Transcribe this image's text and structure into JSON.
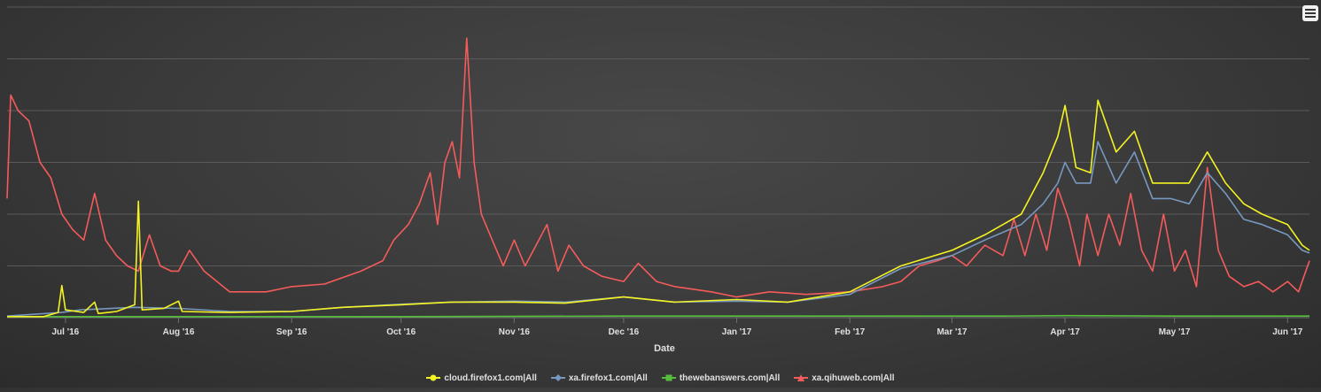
{
  "chart_data": {
    "type": "line",
    "title": "",
    "xlabel": "Date",
    "ylabel": "",
    "x_range": [
      "2016-06-15",
      "2017-06-07"
    ],
    "y_range": [
      0,
      60
    ],
    "grid": {
      "horizontal": true,
      "vertical": false
    },
    "legend": "bottom-center",
    "x_ticks": [
      {
        "label": "Jul '16",
        "date": "2016-07-01"
      },
      {
        "label": "Aug '16",
        "date": "2016-08-01"
      },
      {
        "label": "Sep '16",
        "date": "2016-09-01"
      },
      {
        "label": "Oct '16",
        "date": "2016-10-01"
      },
      {
        "label": "Nov '16",
        "date": "2016-11-01"
      },
      {
        "label": "Dec '16",
        "date": "2016-12-01"
      },
      {
        "label": "Jan '17",
        "date": "2017-01-01"
      },
      {
        "label": "Feb '17",
        "date": "2017-02-01"
      },
      {
        "label": "Mar '17",
        "date": "2017-03-01"
      },
      {
        "label": "Apr '17",
        "date": "2017-04-01"
      },
      {
        "label": "May '17",
        "date": "2017-05-01"
      },
      {
        "label": "Jun '17",
        "date": "2017-06-01"
      }
    ],
    "y_gridlines": [
      0,
      10,
      20,
      30,
      40,
      50,
      60
    ],
    "series": [
      {
        "name": "cloud.firefox1.com|All",
        "color": "#f3f323",
        "marker": "circle",
        "points": [
          [
            "2016-06-15",
            0.2
          ],
          [
            "2016-06-25",
            0.2
          ],
          [
            "2016-06-29",
            1.0
          ],
          [
            "2016-06-30",
            6.2
          ],
          [
            "2016-07-01",
            1.5
          ],
          [
            "2016-07-06",
            1.0
          ],
          [
            "2016-07-09",
            3.0
          ],
          [
            "2016-07-10",
            0.8
          ],
          [
            "2016-07-15",
            1.2
          ],
          [
            "2016-07-20",
            2.5
          ],
          [
            "2016-07-21",
            22.5
          ],
          [
            "2016-07-22",
            1.5
          ],
          [
            "2016-07-28",
            1.8
          ],
          [
            "2016-08-01",
            3.2
          ],
          [
            "2016-08-02",
            1.2
          ],
          [
            "2016-08-15",
            1.0
          ],
          [
            "2016-09-01",
            1.2
          ],
          [
            "2016-09-15",
            2.0
          ],
          [
            "2016-10-01",
            2.5
          ],
          [
            "2016-10-15",
            3.0
          ],
          [
            "2016-11-01",
            3.0
          ],
          [
            "2016-11-15",
            2.8
          ],
          [
            "2016-12-01",
            4.0
          ],
          [
            "2016-12-15",
            3.0
          ],
          [
            "2017-01-01",
            3.5
          ],
          [
            "2017-01-15",
            3.0
          ],
          [
            "2017-02-01",
            5.0
          ],
          [
            "2017-02-15",
            10.0
          ],
          [
            "2017-03-01",
            13.0
          ],
          [
            "2017-03-10",
            16.0
          ],
          [
            "2017-03-20",
            20.0
          ],
          [
            "2017-03-26",
            28.0
          ],
          [
            "2017-03-30",
            35.0
          ],
          [
            "2017-04-01",
            41.0
          ],
          [
            "2017-04-04",
            29.0
          ],
          [
            "2017-04-08",
            28.0
          ],
          [
            "2017-04-10",
            42.0
          ],
          [
            "2017-04-15",
            32.0
          ],
          [
            "2017-04-20",
            36.0
          ],
          [
            "2017-04-25",
            26.0
          ],
          [
            "2017-04-30",
            26.0
          ],
          [
            "2017-05-05",
            26.0
          ],
          [
            "2017-05-10",
            32.0
          ],
          [
            "2017-05-15",
            26.0
          ],
          [
            "2017-05-20",
            22.0
          ],
          [
            "2017-05-25",
            20.0
          ],
          [
            "2017-06-01",
            18.0
          ],
          [
            "2017-06-05",
            14.0
          ],
          [
            "2017-06-07",
            13.0
          ]
        ]
      },
      {
        "name": "xa.firefox1.com|All",
        "color": "#7798bf",
        "marker": "diamond",
        "points": [
          [
            "2016-06-15",
            0.3
          ],
          [
            "2016-06-30",
            1.0
          ],
          [
            "2016-07-05",
            1.5
          ],
          [
            "2016-07-20",
            2.0
          ],
          [
            "2016-08-01",
            1.8
          ],
          [
            "2016-08-15",
            1.2
          ],
          [
            "2016-09-01",
            1.2
          ],
          [
            "2016-09-15",
            2.0
          ],
          [
            "2016-10-01",
            2.6
          ],
          [
            "2016-10-15",
            3.0
          ],
          [
            "2016-11-01",
            3.2
          ],
          [
            "2016-11-15",
            3.0
          ],
          [
            "2016-12-01",
            4.0
          ],
          [
            "2016-12-15",
            3.0
          ],
          [
            "2017-01-01",
            3.2
          ],
          [
            "2017-01-15",
            3.0
          ],
          [
            "2017-02-01",
            4.5
          ],
          [
            "2017-02-15",
            9.5
          ],
          [
            "2017-03-01",
            12.0
          ],
          [
            "2017-03-10",
            15.0
          ],
          [
            "2017-03-20",
            18.0
          ],
          [
            "2017-03-26",
            22.0
          ],
          [
            "2017-03-30",
            26.0
          ],
          [
            "2017-04-01",
            30.0
          ],
          [
            "2017-04-04",
            26.0
          ],
          [
            "2017-04-08",
            26.0
          ],
          [
            "2017-04-10",
            34.0
          ],
          [
            "2017-04-15",
            26.0
          ],
          [
            "2017-04-20",
            32.0
          ],
          [
            "2017-04-25",
            23.0
          ],
          [
            "2017-04-30",
            23.0
          ],
          [
            "2017-05-05",
            22.0
          ],
          [
            "2017-05-10",
            28.0
          ],
          [
            "2017-05-15",
            24.0
          ],
          [
            "2017-05-20",
            19.0
          ],
          [
            "2017-05-25",
            18.0
          ],
          [
            "2017-06-01",
            16.0
          ],
          [
            "2017-06-05",
            13.0
          ],
          [
            "2017-06-07",
            12.5
          ]
        ]
      },
      {
        "name": "thewebanswers.com|All",
        "color": "#55bf3b",
        "marker": "square",
        "points": [
          [
            "2016-06-15",
            0.2
          ],
          [
            "2016-08-01",
            0.2
          ],
          [
            "2016-10-01",
            0.2
          ],
          [
            "2016-12-01",
            0.3
          ],
          [
            "2017-02-01",
            0.3
          ],
          [
            "2017-03-15",
            0.3
          ],
          [
            "2017-04-01",
            0.4
          ],
          [
            "2017-05-01",
            0.3
          ],
          [
            "2017-06-01",
            0.3
          ],
          [
            "2017-06-07",
            0.3
          ]
        ]
      },
      {
        "name": "xa.qihuweb.com|All",
        "color": "#f45b5b",
        "marker": "triangle",
        "points": [
          [
            "2016-06-15",
            23.0
          ],
          [
            "2016-06-16",
            43.0
          ],
          [
            "2016-06-18",
            40.0
          ],
          [
            "2016-06-21",
            38.0
          ],
          [
            "2016-06-24",
            30.0
          ],
          [
            "2016-06-27",
            27.0
          ],
          [
            "2016-06-30",
            20.0
          ],
          [
            "2016-07-03",
            17.0
          ],
          [
            "2016-07-06",
            15.0
          ],
          [
            "2016-07-09",
            24.0
          ],
          [
            "2016-07-12",
            15.0
          ],
          [
            "2016-07-15",
            12.0
          ],
          [
            "2016-07-18",
            10.0
          ],
          [
            "2016-07-21",
            9.0
          ],
          [
            "2016-07-24",
            16.0
          ],
          [
            "2016-07-27",
            10.0
          ],
          [
            "2016-07-30",
            9.0
          ],
          [
            "2016-08-01",
            9.0
          ],
          [
            "2016-08-04",
            13.0
          ],
          [
            "2016-08-08",
            9.0
          ],
          [
            "2016-08-15",
            5.0
          ],
          [
            "2016-08-25",
            5.0
          ],
          [
            "2016-09-01",
            6.0
          ],
          [
            "2016-09-10",
            6.5
          ],
          [
            "2016-09-20",
            9.0
          ],
          [
            "2016-09-26",
            11.0
          ],
          [
            "2016-09-29",
            15.0
          ],
          [
            "2016-10-03",
            18.0
          ],
          [
            "2016-10-06",
            22.0
          ],
          [
            "2016-10-09",
            28.0
          ],
          [
            "2016-10-11",
            18.0
          ],
          [
            "2016-10-13",
            30.0
          ],
          [
            "2016-10-15",
            34.0
          ],
          [
            "2016-10-17",
            27.0
          ],
          [
            "2016-10-19",
            54.0
          ],
          [
            "2016-10-21",
            30.0
          ],
          [
            "2016-10-23",
            20.0
          ],
          [
            "2016-10-26",
            15.0
          ],
          [
            "2016-10-29",
            10.0
          ],
          [
            "2016-11-01",
            15.0
          ],
          [
            "2016-11-04",
            10.0
          ],
          [
            "2016-11-07",
            14.0
          ],
          [
            "2016-11-10",
            18.0
          ],
          [
            "2016-11-13",
            9.0
          ],
          [
            "2016-11-16",
            14.0
          ],
          [
            "2016-11-20",
            10.0
          ],
          [
            "2016-11-25",
            8.0
          ],
          [
            "2016-12-01",
            7.0
          ],
          [
            "2016-12-05",
            10.5
          ],
          [
            "2016-12-10",
            7.0
          ],
          [
            "2016-12-15",
            6.0
          ],
          [
            "2016-12-20",
            5.5
          ],
          [
            "2016-12-25",
            5.0
          ],
          [
            "2017-01-01",
            4.0
          ],
          [
            "2017-01-10",
            5.0
          ],
          [
            "2017-01-20",
            4.5
          ],
          [
            "2017-02-01",
            5.0
          ],
          [
            "2017-02-10",
            6.0
          ],
          [
            "2017-02-15",
            7.0
          ],
          [
            "2017-02-20",
            10.0
          ],
          [
            "2017-02-25",
            11.0
          ],
          [
            "2017-03-01",
            12.0
          ],
          [
            "2017-03-05",
            10.0
          ],
          [
            "2017-03-10",
            14.0
          ],
          [
            "2017-03-15",
            12.0
          ],
          [
            "2017-03-18",
            19.0
          ],
          [
            "2017-03-21",
            12.0
          ],
          [
            "2017-03-24",
            20.0
          ],
          [
            "2017-03-27",
            13.0
          ],
          [
            "2017-03-30",
            25.0
          ],
          [
            "2017-04-02",
            19.0
          ],
          [
            "2017-04-05",
            10.0
          ],
          [
            "2017-04-07",
            20.0
          ],
          [
            "2017-04-10",
            12.0
          ],
          [
            "2017-04-13",
            20.0
          ],
          [
            "2017-04-16",
            14.0
          ],
          [
            "2017-04-19",
            24.0
          ],
          [
            "2017-04-22",
            13.0
          ],
          [
            "2017-04-25",
            9.0
          ],
          [
            "2017-04-28",
            20.0
          ],
          [
            "2017-05-01",
            9.0
          ],
          [
            "2017-05-04",
            13.0
          ],
          [
            "2017-05-07",
            6.0
          ],
          [
            "2017-05-10",
            29.0
          ],
          [
            "2017-05-13",
            13.0
          ],
          [
            "2017-05-16",
            8.0
          ],
          [
            "2017-05-20",
            6.0
          ],
          [
            "2017-05-24",
            7.0
          ],
          [
            "2017-05-28",
            5.0
          ],
          [
            "2017-06-01",
            7.0
          ],
          [
            "2017-06-04",
            5.0
          ],
          [
            "2017-06-07",
            11.0
          ]
        ]
      }
    ]
  }
}
